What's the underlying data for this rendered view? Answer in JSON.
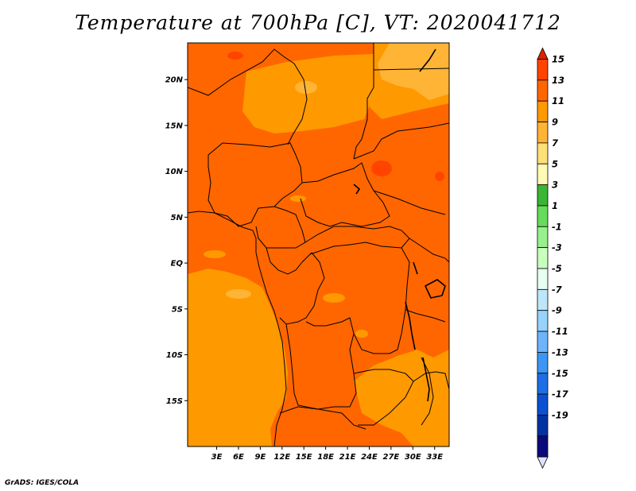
{
  "title": "Temperature at 700hPa [C], VT: 2020041712",
  "footer": "GrADS: IGES/COLA",
  "map": {
    "lon_range": [
      -1,
      35
    ],
    "lat_range": [
      -20,
      24
    ],
    "lat_ticks": [
      {
        "value": 20,
        "label": "20N"
      },
      {
        "value": 15,
        "label": "15N"
      },
      {
        "value": 10,
        "label": "10N"
      },
      {
        "value": 5,
        "label": "5N"
      },
      {
        "value": 0,
        "label": "EQ"
      },
      {
        "value": -5,
        "label": "5S"
      },
      {
        "value": -10,
        "label": "10S"
      },
      {
        "value": -15,
        "label": "15S"
      }
    ],
    "lon_ticks": [
      {
        "value": 3,
        "label": "3E"
      },
      {
        "value": 6,
        "label": "6E"
      },
      {
        "value": 9,
        "label": "9E"
      },
      {
        "value": 12,
        "label": "12E"
      },
      {
        "value": 15,
        "label": "15E"
      },
      {
        "value": 18,
        "label": "18E"
      },
      {
        "value": 21,
        "label": "21E"
      },
      {
        "value": 24,
        "label": "24E"
      },
      {
        "value": 27,
        "label": "27E"
      },
      {
        "value": 30,
        "label": "30E"
      },
      {
        "value": 33,
        "label": "33E"
      }
    ]
  },
  "colorbar": {
    "labels": [
      "15",
      "13",
      "11",
      "9",
      "7",
      "5",
      "3",
      "1",
      "-1",
      "-3",
      "-5",
      "-7",
      "-9",
      "-11",
      "-13",
      "-15",
      "-17",
      "-19"
    ],
    "colors": [
      "#dc2200",
      "#ff4400",
      "#ff6600",
      "#ff9900",
      "#ffb436",
      "#ffdf78",
      "#fffab4",
      "#3ab534",
      "#66dc5a",
      "#98f08c",
      "#c8ffbe",
      "#e6fff0",
      "#bee6fa",
      "#96d2fa",
      "#6eb4fa",
      "#3c96f5",
      "#1e6ee6",
      "#0a50d2",
      "#0032a0",
      "#0a0a7a",
      "#e1e1ff"
    ]
  }
}
